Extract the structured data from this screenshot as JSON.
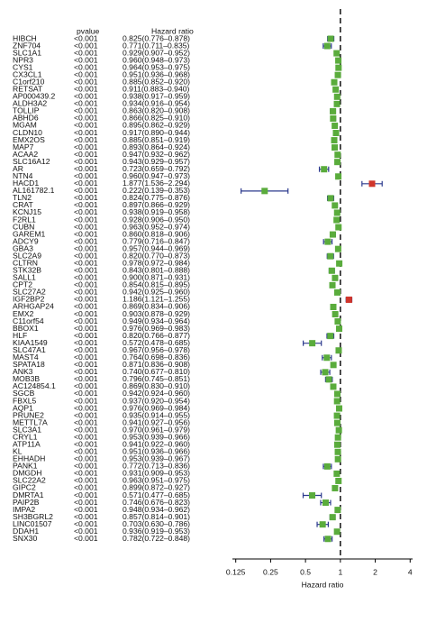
{
  "chart_data": {
    "type": "forest",
    "column_headers": [
      "pvalue",
      "Hazard ratio"
    ],
    "x_label": "Hazard ratio",
    "categories": [
      "HIBCH",
      "ZNF704",
      "SLC1A1",
      "NPR3",
      "CYS1",
      "CX3CL1",
      "C1orf210",
      "RETSAT",
      "AP000439.2",
      "ALDH3A2",
      "TOLLIP",
      "ABHD6",
      "MGAM",
      "CLDN10",
      "EMX2OS",
      "MAP7",
      "ACAA2",
      "SLC16A12",
      "AR",
      "NTN4",
      "HACD1",
      "AL161782.1",
      "TLN2",
      "CRAT",
      "KCNJ15",
      "F2RL1",
      "CUBN",
      "GAREM1",
      "ADCY9",
      "GBA3",
      "SLC2A9",
      "CLTRN",
      "STK32B",
      "SALL1",
      "CPT2",
      "SLC27A2",
      "IGF2BP2",
      "ARHGAP24",
      "EMX2",
      "C11orf54",
      "BBOX1",
      "HLF",
      "KIAA1549",
      "SLC47A1",
      "MAST4",
      "SPATA18",
      "ANK3",
      "MOB3B",
      "AC124854.1",
      "SGCB",
      "FBXL5",
      "AQP1",
      "PRUNE2",
      "METTL7A",
      "SLC3A1",
      "CRYL1",
      "ATP11A",
      "KL",
      "EHHADH",
      "PANK1",
      "DMGDH",
      "SLC22A2",
      "GIPC2",
      "DMRTA1",
      "PAIP2B",
      "IMPA2",
      "SH3BGRL2",
      "LINC01507",
      "DDAH1",
      "SNX30"
    ],
    "pvalues": [
      "<0.001",
      "<0.001",
      "<0.001",
      "<0.001",
      "<0.001",
      "<0.001",
      "<0.001",
      "<0.001",
      "<0.001",
      "<0.001",
      "<0.001",
      "<0.001",
      "<0.001",
      "<0.001",
      "<0.001",
      "<0.001",
      "<0.001",
      "<0.001",
      "<0.001",
      "<0.001",
      "<0.001",
      "<0.001",
      "<0.001",
      "<0.001",
      "<0.001",
      "<0.001",
      "<0.001",
      "<0.001",
      "<0.001",
      "<0.001",
      "<0.001",
      "<0.001",
      "<0.001",
      "<0.001",
      "<0.001",
      "<0.001",
      "<0.001",
      "<0.001",
      "<0.001",
      "<0.001",
      "<0.001",
      "<0.001",
      "<0.001",
      "<0.001",
      "<0.001",
      "<0.001",
      "<0.001",
      "<0.001",
      "<0.001",
      "<0.001",
      "<0.001",
      "<0.001",
      "<0.001",
      "<0.001",
      "<0.001",
      "<0.001",
      "<0.001",
      "<0.001",
      "<0.001",
      "<0.001",
      "<0.001",
      "<0.001",
      "<0.001",
      "<0.001",
      "<0.001",
      "<0.001",
      "<0.001",
      "<0.001",
      "<0.001",
      "<0.001"
    ],
    "values": [
      0.825,
      0.771,
      0.929,
      0.96,
      0.964,
      0.951,
      0.885,
      0.911,
      0.938,
      0.934,
      0.863,
      0.866,
      0.895,
      0.917,
      0.885,
      0.893,
      0.947,
      0.943,
      0.723,
      0.96,
      1.877,
      0.222,
      0.824,
      0.897,
      0.938,
      0.928,
      0.963,
      0.86,
      0.779,
      0.957,
      0.82,
      0.978,
      0.843,
      0.9,
      0.854,
      0.942,
      1.186,
      0.869,
      0.903,
      0.949,
      0.976,
      0.82,
      0.572,
      0.967,
      0.764,
      0.871,
      0.74,
      0.796,
      0.869,
      0.942,
      0.937,
      0.976,
      0.935,
      0.941,
      0.97,
      0.953,
      0.941,
      0.951,
      0.953,
      0.772,
      0.931,
      0.963,
      0.899,
      0.571,
      0.746,
      0.948,
      0.857,
      0.703,
      0.936,
      0.782
    ],
    "lower": [
      0.776,
      0.711,
      0.907,
      0.948,
      0.953,
      0.936,
      0.852,
      0.883,
      0.917,
      0.916,
      0.82,
      0.825,
      0.862,
      0.89,
      0.851,
      0.864,
      0.932,
      0.929,
      0.659,
      0.947,
      1.536,
      0.139,
      0.775,
      0.866,
      0.919,
      0.906,
      0.952,
      0.818,
      0.716,
      0.944,
      0.77,
      0.972,
      0.801,
      0.871,
      0.815,
      0.925,
      1.121,
      0.834,
      0.878,
      0.934,
      0.969,
      0.766,
      0.478,
      0.956,
      0.698,
      0.836,
      0.677,
      0.745,
      0.83,
      0.924,
      0.92,
      0.969,
      0.914,
      0.927,
      0.961,
      0.939,
      0.922,
      0.936,
      0.939,
      0.713,
      0.909,
      0.951,
      0.872,
      0.477,
      0.676,
      0.934,
      0.814,
      0.63,
      0.919,
      0.722
    ],
    "upper": [
      0.878,
      0.835,
      0.952,
      0.973,
      0.975,
      0.968,
      0.92,
      0.94,
      0.959,
      0.954,
      0.908,
      0.91,
      0.929,
      0.944,
      0.919,
      0.924,
      0.962,
      0.957,
      0.792,
      0.973,
      2.294,
      0.353,
      0.876,
      0.929,
      0.958,
      0.95,
      0.974,
      0.906,
      0.847,
      0.969,
      0.873,
      0.984,
      0.888,
      0.931,
      0.895,
      0.96,
      1.255,
      0.906,
      0.929,
      0.964,
      0.983,
      0.877,
      0.685,
      0.978,
      0.836,
      0.908,
      0.81,
      0.851,
      0.91,
      0.96,
      0.954,
      0.984,
      0.955,
      0.956,
      0.979,
      0.966,
      0.96,
      0.966,
      0.967,
      0.836,
      0.953,
      0.975,
      0.927,
      0.685,
      0.823,
      0.962,
      0.901,
      0.786,
      0.953,
      0.848
    ],
    "value_labels": [
      "0.825(0.776–0.878)",
      "0.771(0.711–0.835)",
      "0.929(0.907–0.952)",
      "0.960(0.948–0.973)",
      "0.964(0.953–0.975)",
      "0.951(0.936–0.968)",
      "0.885(0.852–0.920)",
      "0.911(0.883–0.940)",
      "0.938(0.917–0.959)",
      "0.934(0.916–0.954)",
      "0.863(0.820–0.908)",
      "0.866(0.825–0.910)",
      "0.895(0.862–0.929)",
      "0.917(0.890–0.944)",
      "0.885(0.851–0.919)",
      "0.893(0.864–0.924)",
      "0.947(0.932–0.962)",
      "0.943(0.929–0.957)",
      "0.723(0.659–0.792)",
      "0.960(0.947–0.973)",
      "1.877(1.536–2.294)",
      "0.222(0.139–0.353)",
      "0.824(0.775–0.876)",
      "0.897(0.866–0.929)",
      "0.938(0.919–0.958)",
      "0.928(0.906–0.950)",
      "0.963(0.952–0.974)",
      "0.860(0.818–0.906)",
      "0.779(0.716–0.847)",
      "0.957(0.944–0.969)",
      "0.820(0.770–0.873)",
      "0.978(0.972–0.984)",
      "0.843(0.801–0.888)",
      "0.900(0.871–0.931)",
      "0.854(0.815–0.895)",
      "0.942(0.925–0.960)",
      "1.186(1.121–1.255)",
      "0.869(0.834–0.906)",
      "0.903(0.878–0.929)",
      "0.949(0.934–0.964)",
      "0.976(0.969–0.983)",
      "0.820(0.766–0.877)",
      "0.572(0.478–0.685)",
      "0.967(0.956–0.978)",
      "0.764(0.698–0.836)",
      "0.871(0.836–0.908)",
      "0.740(0.677–0.810)",
      "0.796(0.745–0.851)",
      "0.869(0.830–0.910)",
      "0.942(0.924–0.960)",
      "0.937(0.920–0.954)",
      "0.976(0.969–0.984)",
      "0.935(0.914–0.955)",
      "0.941(0.927–0.956)",
      "0.970(0.961–0.979)",
      "0.953(0.939–0.966)",
      "0.941(0.922–0.960)",
      "0.951(0.936–0.966)",
      "0.953(0.939–0.967)",
      "0.772(0.713–0.836)",
      "0.931(0.909–0.953)",
      "0.963(0.951–0.975)",
      "0.899(0.872–0.927)",
      "0.571(0.477–0.685)",
      "0.746(0.676–0.823)",
      "0.948(0.934–0.962)",
      "0.857(0.814–0.901)",
      "0.703(0.630–0.786)",
      "0.936(0.919–0.953)",
      "0.782(0.722–0.848)"
    ],
    "xscale": "log2",
    "xlim": [
      0.117,
      4.2
    ],
    "xticks": [
      0.125,
      0.25,
      0.5,
      1,
      2,
      4
    ],
    "reference": 1,
    "protective_color": "#5aac3c",
    "risk_color": "#d0352b",
    "ci_color": "#2c3a8e"
  }
}
